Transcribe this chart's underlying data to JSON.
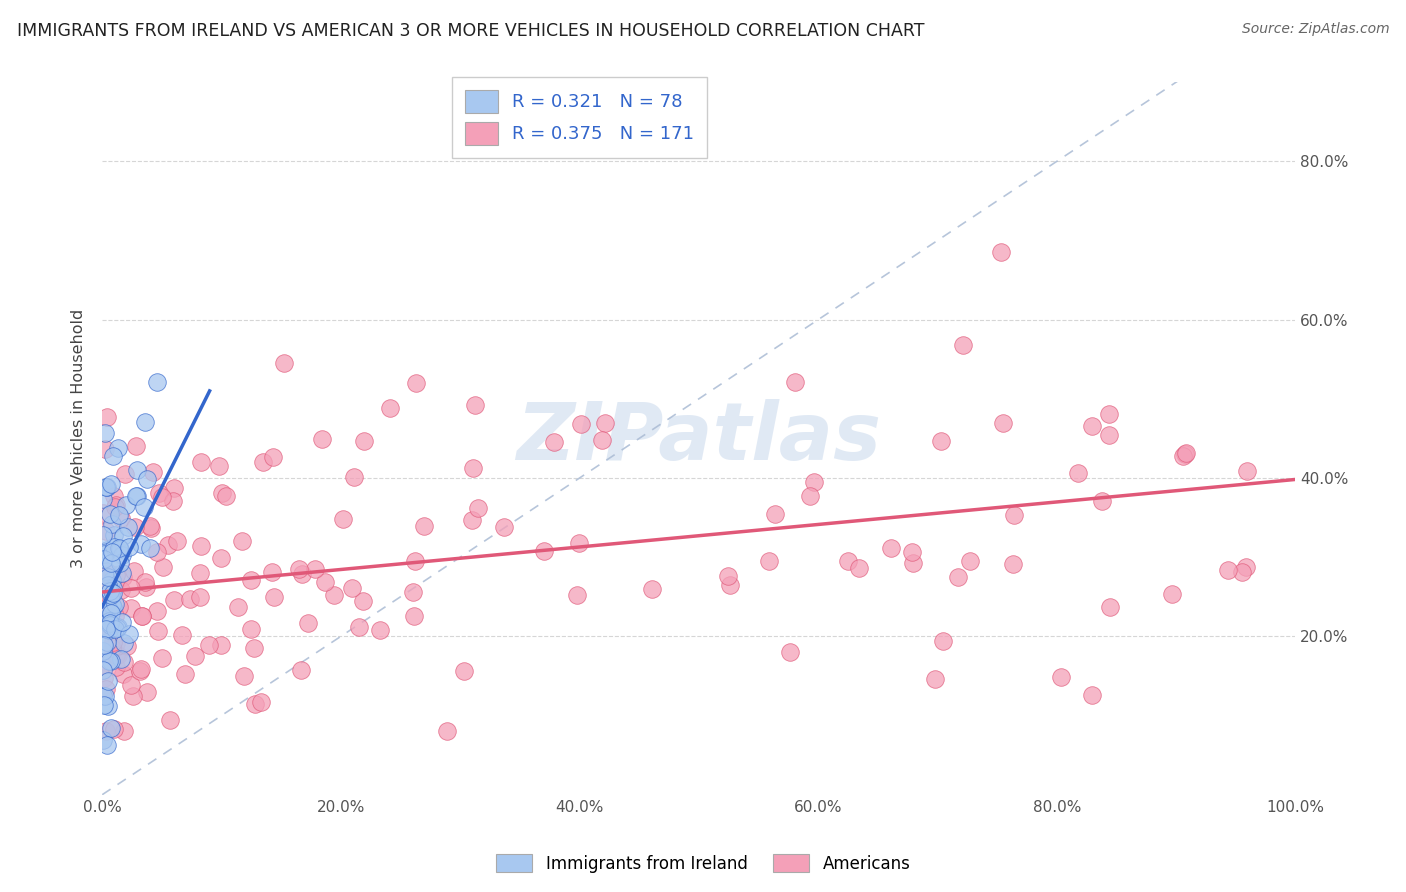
{
  "title": "IMMIGRANTS FROM IRELAND VS AMERICAN 3 OR MORE VEHICLES IN HOUSEHOLD CORRELATION CHART",
  "source": "Source: ZipAtlas.com",
  "ylabel": "3 or more Vehicles in Household",
  "xmin": 0.0,
  "xmax": 1.0,
  "ymin": 0.0,
  "ymax": 0.9,
  "xtick_labels": [
    "0.0%",
    "20.0%",
    "40.0%",
    "60.0%",
    "80.0%",
    "100.0%"
  ],
  "xtick_vals": [
    0.0,
    0.2,
    0.4,
    0.6,
    0.8,
    1.0
  ],
  "ytick_labels": [
    "20.0%",
    "40.0%",
    "60.0%",
    "80.0%"
  ],
  "ytick_vals": [
    0.2,
    0.4,
    0.6,
    0.8
  ],
  "legend_label1": "Immigrants from Ireland",
  "legend_label2": "Americans",
  "r1": 0.321,
  "n1": 78,
  "r2": 0.375,
  "n2": 171,
  "color1": "#a8c8f0",
  "color2": "#f4a0b8",
  "line_color1": "#3366cc",
  "line_color2": "#e05878",
  "diag_color": "#aabbd4",
  "watermark": "ZIPatlas",
  "background_color": "#ffffff",
  "grid_color": "#cccccc"
}
